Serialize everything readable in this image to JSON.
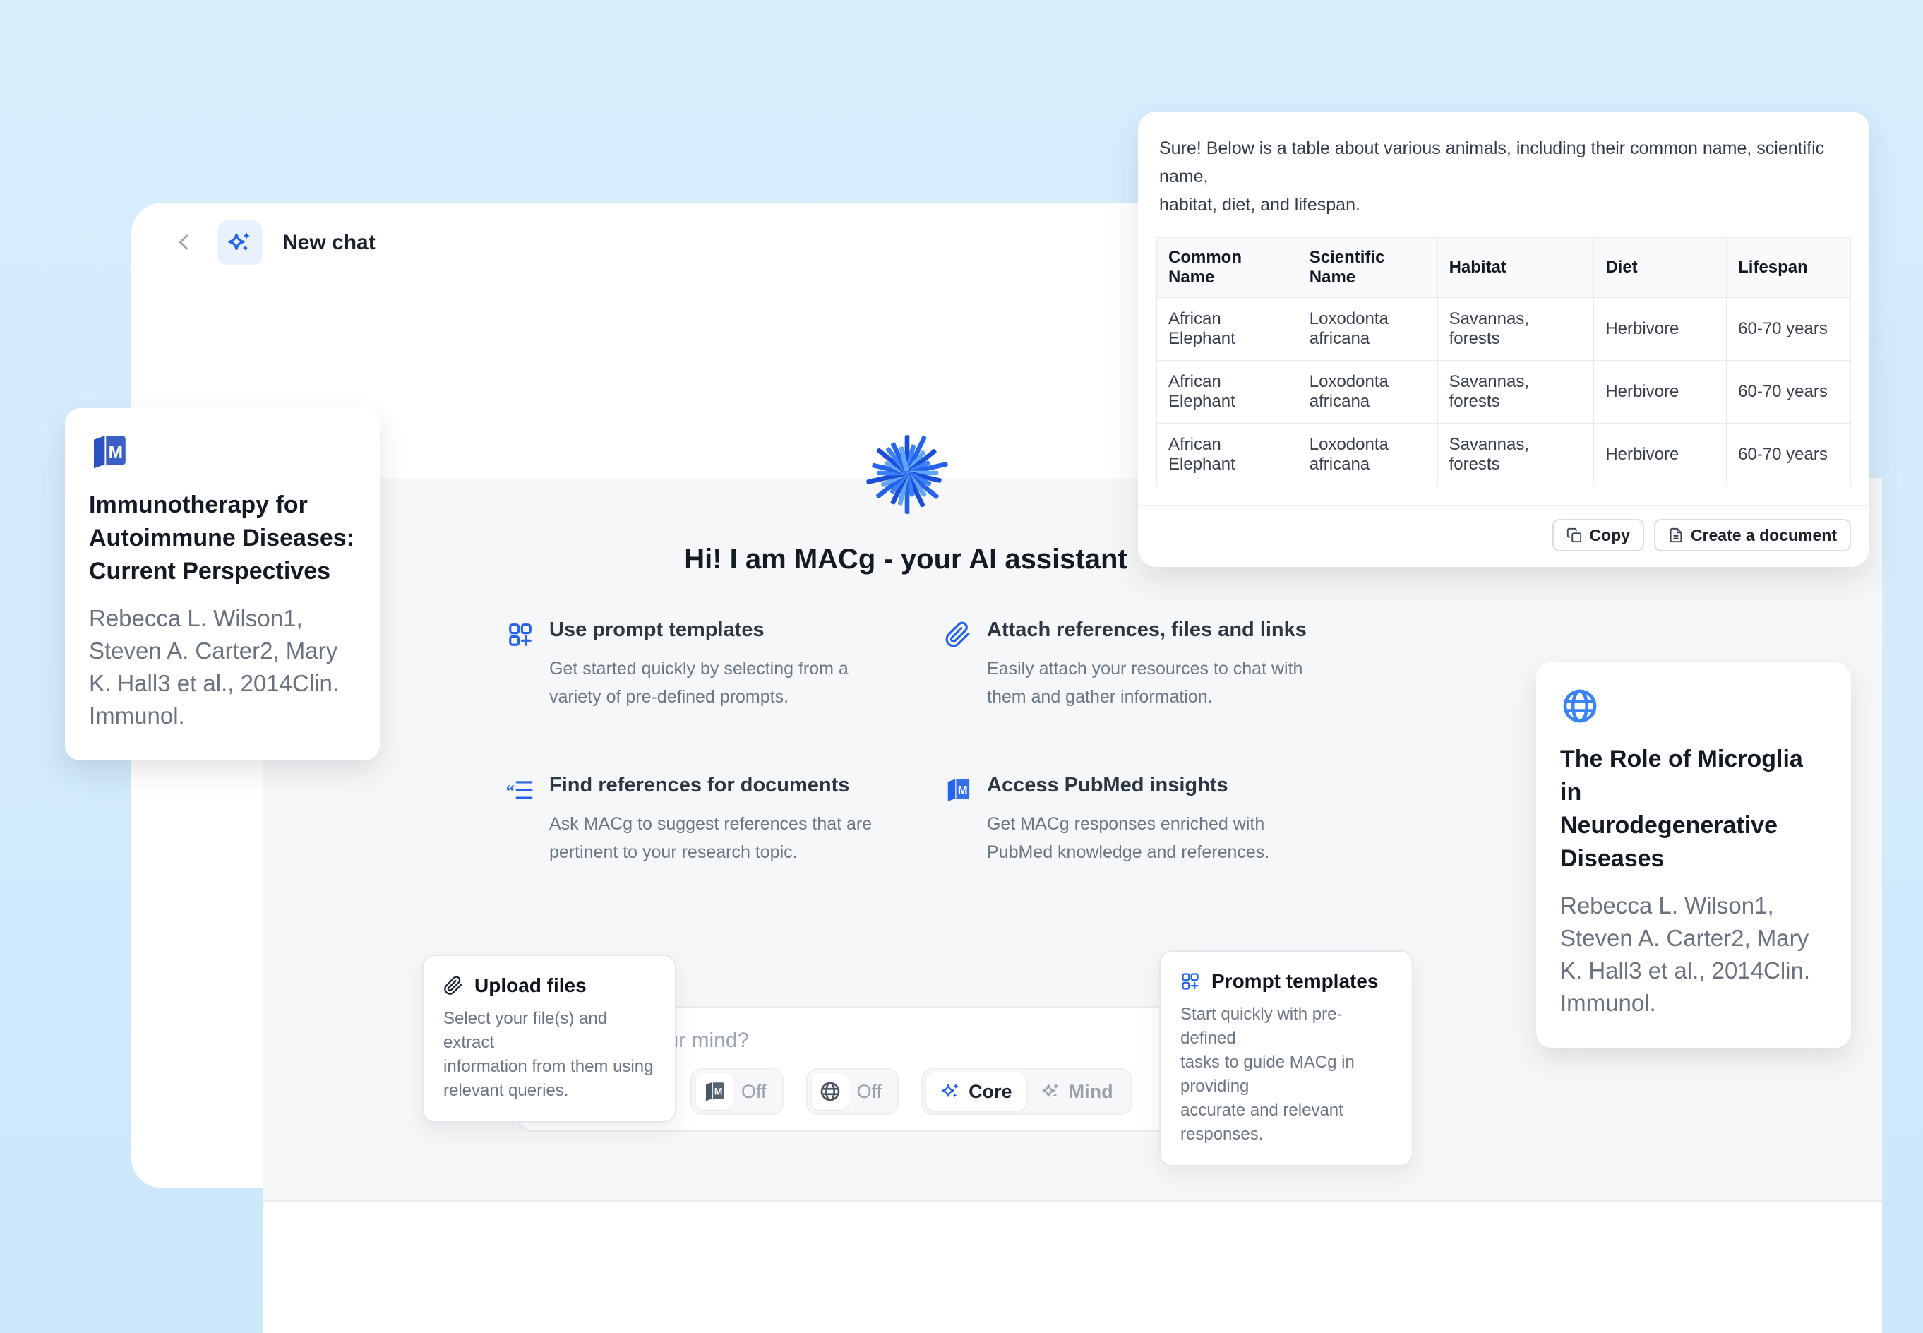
{
  "colors": {
    "accent": "#2563eb",
    "accent_light": "#3b82f6",
    "background": "#cfe8fc"
  },
  "header": {
    "title": "New chat"
  },
  "hero": {
    "title": "Hi! I am MACg - your AI assistant"
  },
  "features": [
    {
      "icon": "prompt-templates-icon",
      "title": "Use prompt templates",
      "description": "Get started quickly by selecting from a\nvariety of pre-defined prompts."
    },
    {
      "icon": "paperclip-icon",
      "title": "Attach references, files and links",
      "description": "Easily attach your resources to chat with\nthem and gather information."
    },
    {
      "icon": "references-list-icon",
      "title": "Find references for documents",
      "description": "Ask MACg to suggest references that are\npertinent to your research topic."
    },
    {
      "icon": "pubmed-icon",
      "title": "Access PubMed insights",
      "description": "Get MACg responses enriched with\nPubMed knowledge and references."
    }
  ],
  "response_card": {
    "message": "Sure! Below is a table about various animals, including their common name, scientific name,\nhabitat, diet, and lifespan.",
    "table": {
      "headers": [
        "Common Name",
        "Scientific Name",
        "Habitat",
        "Diet",
        "Lifespan"
      ],
      "rows": [
        [
          "African Elephant",
          "Loxodonta africana",
          "Savannas, forests",
          "Herbivore",
          "60-70 years"
        ],
        [
          "African Elephant",
          "Loxodonta africana",
          "Savannas, forests",
          "Herbivore",
          "60-70 years"
        ],
        [
          "African Elephant",
          "Loxodonta africana",
          "Savannas, forests",
          "Herbivore",
          "60-70 years"
        ]
      ]
    },
    "actions": {
      "copy": "Copy",
      "create_document": "Create a document"
    }
  },
  "citation_cards": [
    {
      "icon": "pubmed-icon",
      "title": "Immunotherapy for\nAutoimmune Diseases:\nCurrent Perspectives",
      "authors": "Rebecca L. Wilson1,\nSteven A. Carter2, Mary\nK. Hall3 et al., 2014Clin.\nImmunol."
    },
    {
      "icon": "globe-icon",
      "title": "The Role of Microglia in\nNeurodegenerative\nDiseases",
      "authors": "Rebecca L. Wilson1,\nSteven A. Carter2, Mary\nK. Hall3 et al., 2014Clin.\nImmunol."
    }
  ],
  "composer": {
    "placeholder": "What's on your mind?",
    "toolbar": {
      "pubmed_toggle": {
        "label": "Off"
      },
      "web_toggle": {
        "label": "Off"
      },
      "mode_switch": {
        "core_label": "Core",
        "mind_label": "Mind",
        "selected": "Core"
      }
    }
  },
  "tooltips": [
    {
      "icon": "paperclip-icon",
      "title": "Upload files",
      "description": "Select your file(s) and extract\ninformation from them using\nrelevant queries."
    },
    {
      "icon": "prompt-templates-icon",
      "title": "Prompt templates",
      "description": "Start quickly with pre-defined\ntasks to guide MACg in providing\naccurate and relevant responses."
    }
  ]
}
